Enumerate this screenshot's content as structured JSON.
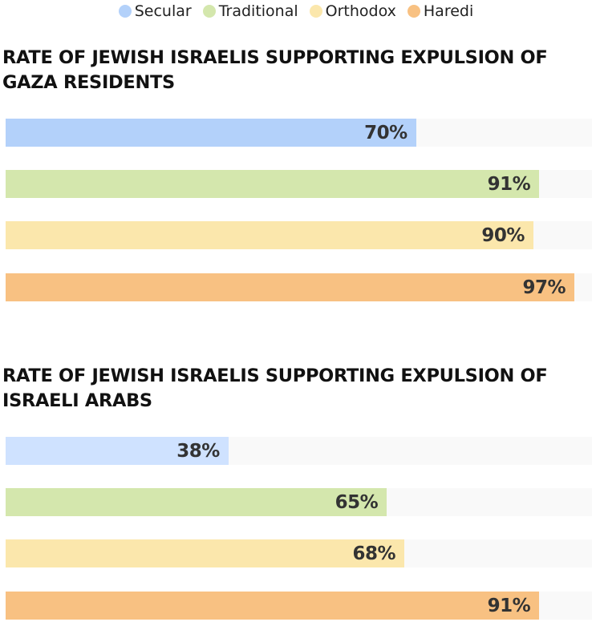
{
  "legend": [
    {
      "label": "Secular",
      "color": "#b3d1fa"
    },
    {
      "label": "Traditional",
      "color": "#d4e7ad"
    },
    {
      "label": "Orthodox",
      "color": "#fbe7ac"
    },
    {
      "label": "Haredi",
      "color": "#f8c182"
    }
  ],
  "chart_data": [
    {
      "type": "bar",
      "orientation": "horizontal",
      "title": "RATE OF JEWISH ISRAELIS SUPPORTING EXPULSION OF GAZA RESIDENTS",
      "categories": [
        "Secular",
        "Traditional",
        "Orthodox",
        "Haredi"
      ],
      "values": [
        70,
        91,
        90,
        97
      ],
      "labels": [
        "70%",
        "91%",
        "90%",
        "97%"
      ],
      "colors": [
        "#b3d1fa",
        "#d4e7ad",
        "#fbe7ac",
        "#f8c182"
      ],
      "xlim": [
        0,
        100
      ]
    },
    {
      "type": "bar",
      "orientation": "horizontal",
      "title": "RATE OF JEWISH ISRAELIS SUPPORTING EXPULSION OF ISRAELI ARABS",
      "categories": [
        "Secular",
        "Traditional",
        "Orthodox",
        "Haredi"
      ],
      "values": [
        38,
        65,
        68,
        91
      ],
      "labels": [
        "38%",
        "65%",
        "68%",
        "91%"
      ],
      "colors": [
        "#cfe2ff",
        "#d4e7ad",
        "#fbe7ac",
        "#f8c182"
      ],
      "xlim": [
        0,
        100
      ]
    }
  ]
}
